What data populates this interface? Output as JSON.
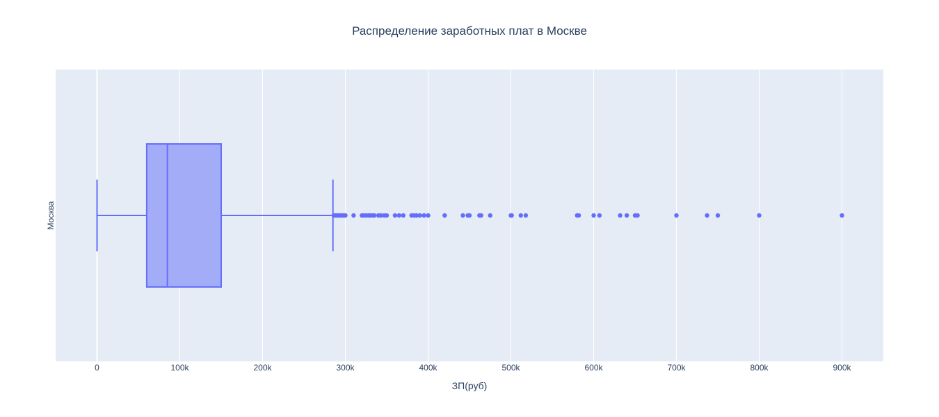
{
  "chart_data": {
    "type": "box",
    "title": "Распределение заработных плат в Москве",
    "xlabel": "ЗП(руб)",
    "ylabel": "Москва",
    "xlim": [
      -50000,
      950000
    ],
    "xticks": [
      {
        "value": 0,
        "label": "0"
      },
      {
        "value": 100000,
        "label": "100k"
      },
      {
        "value": 200000,
        "label": "200k"
      },
      {
        "value": 300000,
        "label": "300k"
      },
      {
        "value": 400000,
        "label": "400k"
      },
      {
        "value": 500000,
        "label": "500k"
      },
      {
        "value": 600000,
        "label": "600k"
      },
      {
        "value": 700000,
        "label": "700k"
      },
      {
        "value": 800000,
        "label": "800k"
      },
      {
        "value": 900000,
        "label": "900k"
      }
    ],
    "grid": true,
    "orientation": "horizontal",
    "series": [
      {
        "category": "Москва",
        "min": 0,
        "q1": 60000,
        "median": 85000,
        "q3": 150000,
        "max": 285000,
        "outliers": [
          286000,
          288000,
          290000,
          292000,
          294000,
          296000,
          298000,
          300000,
          310000,
          320000,
          322000,
          325000,
          328000,
          330000,
          333000,
          335000,
          340000,
          343000,
          347000,
          350000,
          360000,
          365000,
          370000,
          380000,
          383000,
          386000,
          390000,
          395000,
          400000,
          420000,
          442000,
          448000,
          450000,
          462000,
          464000,
          475000,
          500000,
          501000,
          512000,
          518000,
          580000,
          582000,
          600000,
          607000,
          632000,
          640000,
          650000,
          653000,
          700000,
          737000,
          750000,
          800000,
          900000
        ]
      }
    ],
    "colors": {
      "box_line": "#636efa",
      "box_fill": "#a3acf7",
      "plot_bg": "#e5ecf6",
      "grid": "#ffffff",
      "text": "#2a3f5f"
    }
  }
}
